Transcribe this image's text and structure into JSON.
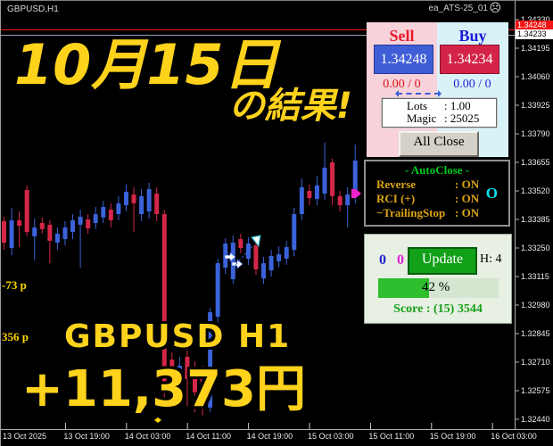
{
  "window": {
    "symbol_label": "GBPUSD,H1",
    "ea_label": "ea_ATS-25_01"
  },
  "overlay": {
    "line1": "10月15日",
    "line2": "の結果!",
    "line3": "GBPUSD H1",
    "line4": "+11,373円"
  },
  "quote": {
    "ask": "1.34248",
    "bid": "1.34233",
    "ask_line_color": "#f21414",
    "bid_line_color": "#9aa0b4"
  },
  "trade_panel": {
    "sell_label": "Sell",
    "buy_label": "Buy",
    "sell_price": "1.34248",
    "buy_price": "1.34234",
    "sell_stats": "0.00 / 0",
    "buy_stats": "0.00 / 0",
    "lots_label": "Lots",
    "lots_value": ": 1.00",
    "magic_label": "Magic",
    "magic_value": ": 25025",
    "all_close_label": "All Close"
  },
  "autoclose_panel": {
    "title": "- AutoClose -",
    "rows": [
      {
        "label": "Reverse",
        "value": ": ON"
      },
      {
        "label": "RCI (+)",
        "value": ": ON"
      },
      {
        "label": "−TrailingStop",
        "value": ": ON"
      }
    ]
  },
  "update_panel": {
    "count_a": "0",
    "count_b": "0",
    "update_label": "Update",
    "hours_label": "H: 4",
    "progress_pct": 42,
    "progress_label": "42 %",
    "score_label": "Score : (15) 3544"
  },
  "pip_labels": [
    {
      "text": "-73 p",
      "y": 312
    },
    {
      "text": "356 p",
      "y": 370
    }
  ],
  "price_axis": {
    "ticks": [
      "1.34330",
      "1.34195",
      "1.34060",
      "1.33925",
      "1.33790",
      "1.33655",
      "1.33520",
      "1.33385",
      "1.33250",
      "1.33115",
      "1.32980",
      "1.32845",
      "1.32710",
      "1.32575",
      "1.32440"
    ],
    "top_price": 1.3433,
    "step": 0.00135
  },
  "time_axis": {
    "labels": [
      "13 Oct 2025",
      "13 Oct 19:00",
      "14 Oct 03:00",
      "14 Oct 11:00",
      "14 Oct 19:00",
      "15 Oct 03:00",
      "15 Oct 11:00",
      "15 Oct 19:00",
      "16 Oct 03:00"
    ]
  },
  "chart_data": {
    "type": "candlestick",
    "symbol": "GBPUSD",
    "timeframe": "H1",
    "up_color": "#3b62d9",
    "down_color": "#d42748",
    "ylim": [
      1.3244,
      1.3433
    ],
    "grid": false,
    "candles": [
      {
        "d": "down",
        "o": 1.33377,
        "h": 1.33398,
        "l": 1.33241,
        "c": 1.33275
      },
      {
        "d": "up",
        "o": 1.3325,
        "h": 1.3344,
        "l": 1.33216,
        "c": 1.33381
      },
      {
        "d": "down",
        "o": 1.33381,
        "h": 1.33423,
        "l": 1.33254,
        "c": 1.33355
      },
      {
        "d": "down",
        "o": 1.33524,
        "h": 1.33546,
        "l": 1.33305,
        "c": 1.33326
      },
      {
        "d": "up",
        "o": 1.33305,
        "h": 1.33389,
        "l": 1.33191,
        "c": 1.33347
      },
      {
        "d": "down",
        "o": 1.33368,
        "h": 1.33394,
        "l": 1.33318,
        "c": 1.33339
      },
      {
        "d": "down",
        "o": 1.3336,
        "h": 1.33381,
        "l": 1.33178,
        "c": 1.33284
      },
      {
        "d": "up",
        "o": 1.33275,
        "h": 1.33347,
        "l": 1.33241,
        "c": 1.33318
      },
      {
        "d": "up",
        "o": 1.33292,
        "h": 1.33377,
        "l": 1.33262,
        "c": 1.33347
      },
      {
        "d": "up",
        "o": 1.33326,
        "h": 1.3341,
        "l": 1.33292,
        "c": 1.33381
      },
      {
        "d": "up",
        "o": 1.3336,
        "h": 1.33431,
        "l": 1.33157,
        "c": 1.33398
      },
      {
        "d": "down",
        "o": 1.33385,
        "h": 1.3341,
        "l": 1.33318,
        "c": 1.33343
      },
      {
        "d": "up",
        "o": 1.33368,
        "h": 1.33444,
        "l": 1.33339,
        "c": 1.3341
      },
      {
        "d": "up",
        "o": 1.33394,
        "h": 1.33473,
        "l": 1.33368,
        "c": 1.33444
      },
      {
        "d": "down",
        "o": 1.33431,
        "h": 1.33461,
        "l": 1.33347,
        "c": 1.33381
      },
      {
        "d": "up",
        "o": 1.3341,
        "h": 1.33495,
        "l": 1.33381,
        "c": 1.33461
      },
      {
        "d": "up",
        "o": 1.33452,
        "h": 1.3355,
        "l": 1.33423,
        "c": 1.33516
      },
      {
        "d": "down",
        "o": 1.33503,
        "h": 1.33537,
        "l": 1.33326,
        "c": 1.33461
      },
      {
        "d": "up",
        "o": 1.3341,
        "h": 1.33528,
        "l": 1.33377,
        "c": 1.33495
      },
      {
        "d": "up",
        "o": 1.33423,
        "h": 1.33558,
        "l": 1.33389,
        "c": 1.33528
      },
      {
        "d": "down",
        "o": 1.33507,
        "h": 1.33537,
        "l": 1.33377,
        "c": 1.3341
      },
      {
        "d": "down",
        "o": 1.3341,
        "h": 1.33431,
        "l": 1.32533,
        "c": 1.32567
      },
      {
        "d": "down",
        "o": 1.32722,
        "h": 1.32756,
        "l": 1.32503,
        "c": 1.32651
      },
      {
        "d": "up",
        "o": 1.32609,
        "h": 1.32735,
        "l": 1.32533,
        "c": 1.32693
      },
      {
        "d": "down",
        "o": 1.32735,
        "h": 1.32765,
        "l": 1.32503,
        "c": 1.3263
      },
      {
        "d": "down",
        "o": 1.32672,
        "h": 1.32714,
        "l": 1.32474,
        "c": 1.32567
      },
      {
        "d": "down",
        "o": 1.32651,
        "h": 1.32693,
        "l": 1.32457,
        "c": 1.32546
      },
      {
        "d": "up",
        "o": 1.32495,
        "h": 1.32967,
        "l": 1.32474,
        "c": 1.32946
      },
      {
        "d": "up",
        "o": 1.32925,
        "h": 1.33199,
        "l": 1.32896,
        "c": 1.33178
      },
      {
        "d": "up",
        "o": 1.33157,
        "h": 1.33296,
        "l": 1.33127,
        "c": 1.33271
      },
      {
        "d": "up",
        "o": 1.33102,
        "h": 1.33309,
        "l": 1.33081,
        "c": 1.33275
      },
      {
        "d": "down",
        "o": 1.33292,
        "h": 1.33317,
        "l": 1.33225,
        "c": 1.3325
      },
      {
        "d": "up",
        "o": 1.33199,
        "h": 1.33301,
        "l": 1.3317,
        "c": 1.33271
      },
      {
        "d": "down",
        "o": 1.33262,
        "h": 1.33284,
        "l": 1.33123,
        "c": 1.33149
      },
      {
        "d": "up",
        "o": 1.33106,
        "h": 1.33208,
        "l": 1.33081,
        "c": 1.33178
      },
      {
        "d": "up",
        "o": 1.33144,
        "h": 1.33241,
        "l": 1.33115,
        "c": 1.33212
      },
      {
        "d": "up",
        "o": 1.33187,
        "h": 1.33258,
        "l": 1.33157,
        "c": 1.3322
      },
      {
        "d": "up",
        "o": 1.33199,
        "h": 1.33284,
        "l": 1.3317,
        "c": 1.33254
      },
      {
        "d": "up",
        "o": 1.33241,
        "h": 1.3344,
        "l": 1.33212,
        "c": 1.3341
      },
      {
        "d": "up",
        "o": 1.3341,
        "h": 1.33579,
        "l": 1.33381,
        "c": 1.33537
      },
      {
        "d": "down",
        "o": 1.3352,
        "h": 1.3355,
        "l": 1.33452,
        "c": 1.33486
      },
      {
        "d": "up",
        "o": 1.33482,
        "h": 1.33592,
        "l": 1.33452,
        "c": 1.33546
      },
      {
        "d": "up",
        "o": 1.33507,
        "h": 1.33748,
        "l": 1.33478,
        "c": 1.3363
      },
      {
        "d": "down",
        "o": 1.33655,
        "h": 1.33672,
        "l": 1.33452,
        "c": 1.33495
      },
      {
        "d": "down",
        "o": 1.33495,
        "h": 1.3352,
        "l": 1.33423,
        "c": 1.33452
      },
      {
        "d": "up",
        "o": 1.33452,
        "h": 1.33537,
        "l": 1.33347,
        "c": 1.33503
      },
      {
        "d": "up",
        "o": 1.33495,
        "h": 1.33739,
        "l": 1.33461,
        "c": 1.33663
      }
    ],
    "markers": [
      {
        "name": "entry-arrow",
        "x": 252,
        "y": 284,
        "color": "#ffffff"
      },
      {
        "name": "entry-arrow",
        "x": 260,
        "y": 292,
        "color": "#ffffff"
      },
      {
        "name": "trend-dash-line",
        "x1": 264,
        "y1": 297,
        "x2": 284,
        "y2": 275,
        "color": "#3a5fd9"
      },
      {
        "name": "exit-flag",
        "x": 282,
        "y": 266,
        "color": "#ffffff"
      },
      {
        "name": "current-trade-arrow",
        "x": 394,
        "y": 212,
        "color": "#ee22cc"
      },
      {
        "name": "axis-dot",
        "x": 177,
        "y": 471,
        "color": "#ffd800"
      }
    ]
  }
}
